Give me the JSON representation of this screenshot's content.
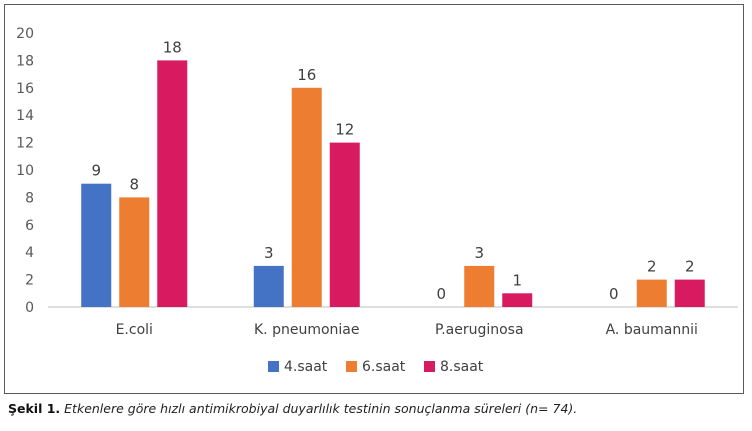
{
  "chart_data": {
    "type": "bar",
    "categories": [
      "E.coli",
      "K. pneumoniae",
      "P.aeruginosa",
      "A. baumannii"
    ],
    "series": [
      {
        "name": "4.saat",
        "color": "#4472c4",
        "values": [
          9,
          3,
          0,
          0
        ]
      },
      {
        "name": "6.saat",
        "color": "#ed7d31",
        "values": [
          8,
          16,
          3,
          2
        ]
      },
      {
        "name": "8.saat",
        "color": "#d81b60",
        "values": [
          18,
          12,
          1,
          2
        ]
      }
    ],
    "ylim": [
      0,
      20
    ],
    "yticks": [
      "0",
      "2",
      "4",
      "6",
      "8",
      "10",
      "12",
      "14",
      "16",
      "18",
      "20"
    ],
    "grid": false,
    "legend": "bottom-center",
    "title": "",
    "xlabel": "",
    "ylabel": ""
  },
  "caption": {
    "label": "Şekil 1.",
    "text": "Etkenlere göre hızlı antimikrobiyal duyarlılık testinin sonuçlanma süreleri (n= 74)."
  }
}
